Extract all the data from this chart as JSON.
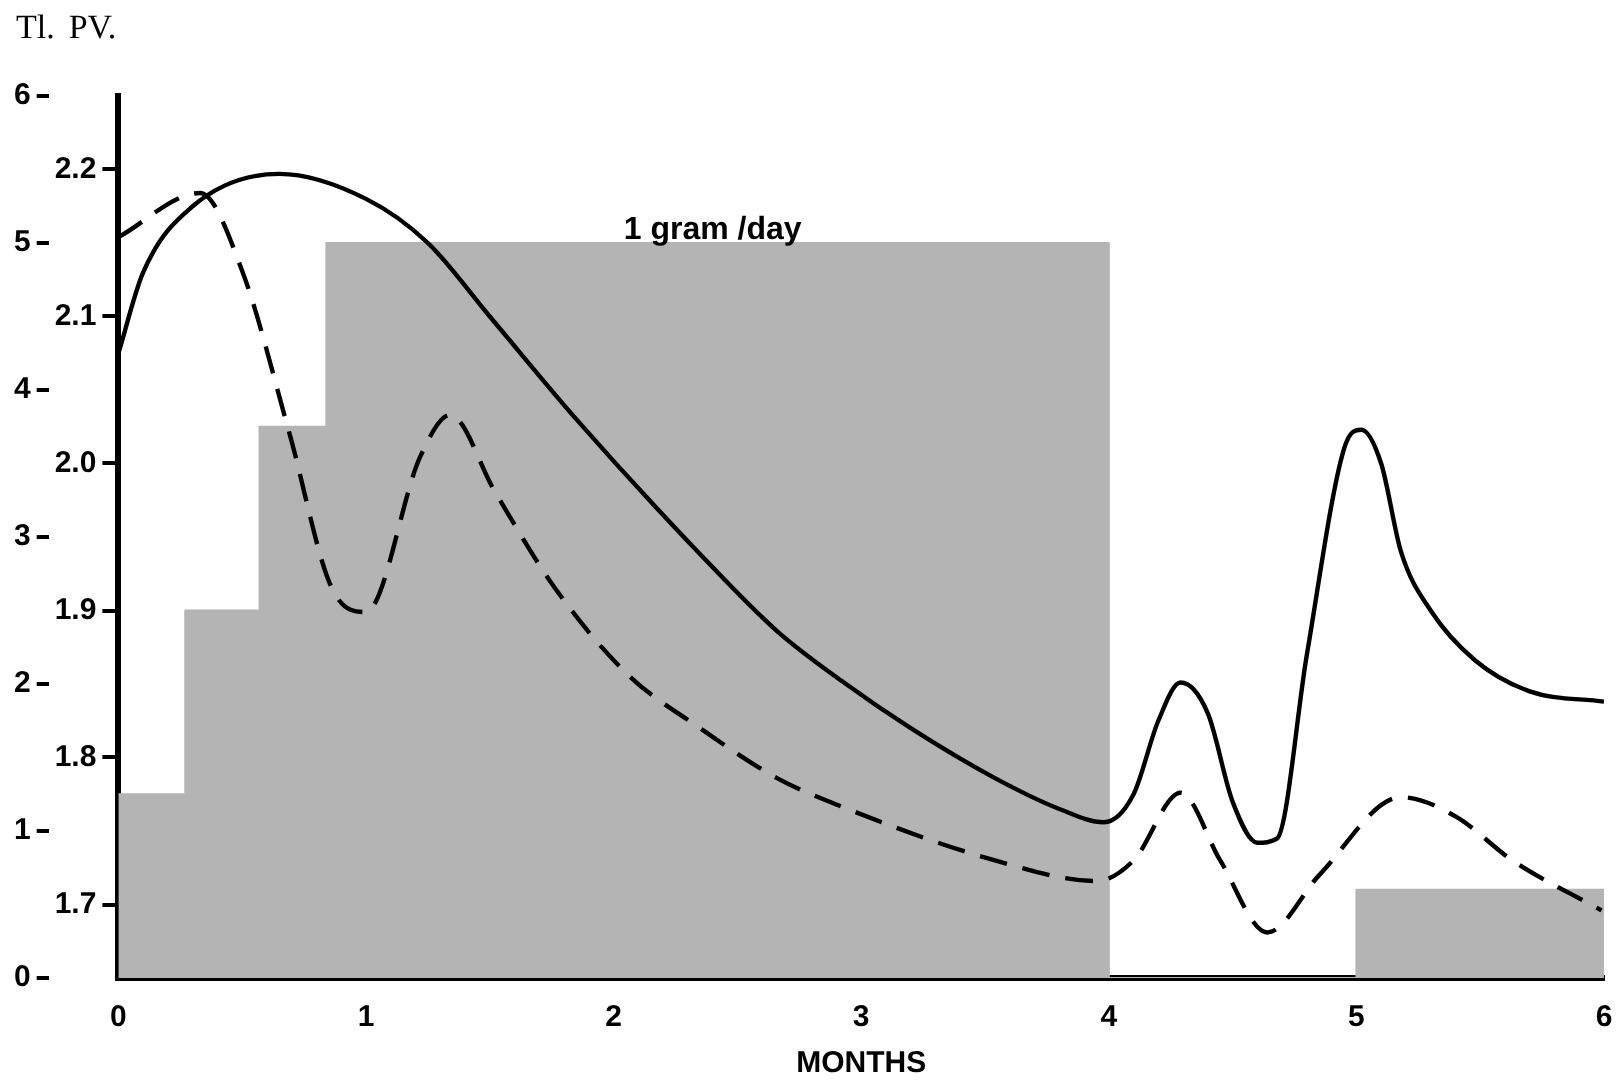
{
  "chart_data": {
    "type": "line",
    "xlabel": "MONTHS",
    "ylabel": "Tl.",
    "y2label": "PV.",
    "xlim": [
      0,
      6
    ],
    "xticks": [
      0,
      1,
      2,
      3,
      4,
      5,
      6
    ],
    "ylim": [
      0,
      6
    ],
    "yticks": [
      0,
      1,
      2,
      3,
      4,
      5,
      6
    ],
    "y2lim": [
      1.65,
      2.25
    ],
    "y2ticks": [
      1.7,
      1.8,
      1.9,
      {
        "value": 2.0,
        "label": "2.0"
      },
      2.1,
      2.2
    ],
    "grid": false,
    "legend": false,
    "marker": "none",
    "annotations": [
      "1 gram /day"
    ],
    "series": [
      {
        "type": "area",
        "color": "#b4b4b4",
        "x": [
          0,
          0.27,
          0.27,
          0.57,
          0.57,
          0.84,
          0.84,
          4,
          4,
          5,
          5,
          6
        ],
        "values": [
          1.25,
          1.25,
          2.5,
          2.5,
          3.75,
          3.75,
          5,
          5,
          0,
          0,
          0.6,
          0.6
        ]
      },
      {
        "type": "line",
        "axis": "y2",
        "color": "#000000",
        "line_style": "solid",
        "x": [
          0,
          0.1,
          0.3,
          0.65,
          1.0,
          1.25,
          1.5,
          1.85,
          2.34,
          2.66,
          2.93,
          3.2,
          3.54,
          3.8,
          3.98,
          4.1,
          4.2,
          4.29,
          4.4,
          4.5,
          4.6,
          4.68,
          4.8,
          4.95,
          5.02,
          5.1,
          5.18,
          5.3,
          5.48,
          5.7,
          6.0
        ],
        "values": [
          2.075,
          2.13,
          2.175,
          2.197,
          2.18,
          2.15,
          2.1,
          2.03,
          1.94,
          1.886,
          1.851,
          1.82,
          1.786,
          1.765,
          1.756,
          1.775,
          1.825,
          1.851,
          1.83,
          1.77,
          1.742,
          1.745,
          1.87,
          2.01,
          2.023,
          2.0,
          1.94,
          1.9,
          1.866,
          1.845,
          1.838
        ]
      },
      {
        "type": "line",
        "axis": "y2",
        "color": "#000000",
        "line_style": "dashed",
        "x": [
          0,
          0.33,
          0.5,
          0.69,
          0.86,
          1.0,
          1.22,
          1.34,
          1.52,
          1.76,
          2.06,
          2.34,
          2.66,
          2.93,
          3.54,
          3.95,
          4.1,
          4.29,
          4.45,
          4.64,
          4.85,
          5.18,
          5.4,
          5.63,
          5.99
        ],
        "values": [
          2.154,
          2.184,
          2.131,
          2.021,
          1.916,
          1.899,
          2.005,
          2.033,
          1.981,
          1.916,
          1.856,
          1.821,
          1.786,
          1.766,
          1.73,
          1.716,
          1.73,
          1.776,
          1.73,
          1.681,
          1.72,
          1.773,
          1.76,
          1.73,
          1.696
        ]
      }
    ]
  }
}
